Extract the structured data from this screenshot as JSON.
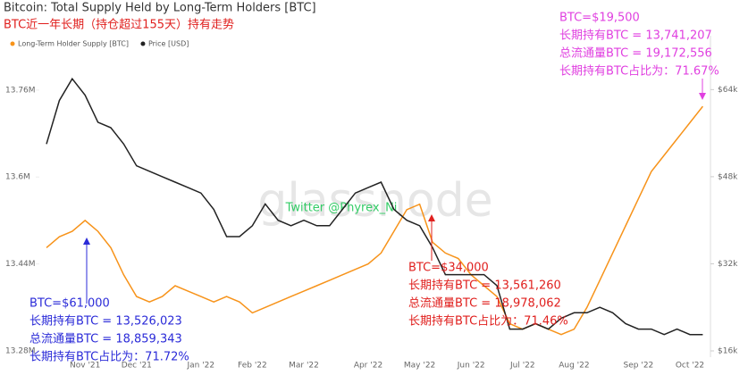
{
  "chart_data": {
    "type": "line",
    "title": "Bitcoin: Total Supply Held by Long-Term Holders [BTC]",
    "subtitle": "BTC近一年长期（持仓超过155天）持有走势",
    "categories": [
      null,
      null,
      null,
      "Nov '21",
      null,
      null,
      null,
      "Dec '21",
      null,
      null,
      null,
      null,
      "Jan '22",
      null,
      null,
      null,
      "Feb '22",
      null,
      null,
      null,
      "Mar '22",
      null,
      null,
      null,
      null,
      "Apr '22",
      null,
      null,
      null,
      "May '22",
      null,
      null,
      null,
      "Jun '22",
      null,
      null,
      null,
      "Jul '22",
      null,
      null,
      null,
      "Aug '22",
      null,
      null,
      null,
      null,
      "Sep '22",
      null,
      null,
      null,
      "Oct '22",
      null
    ],
    "series": [
      {
        "name": "Long-Term Holder Supply [BTC]",
        "color": "#f7931a",
        "axis": "y",
        "values": [
          13.47,
          13.49,
          13.5,
          13.52,
          13.5,
          13.47,
          13.42,
          13.38,
          13.37,
          13.38,
          13.4,
          13.39,
          13.38,
          13.37,
          13.38,
          13.37,
          13.35,
          13.36,
          13.37,
          13.38,
          13.39,
          13.4,
          13.41,
          13.42,
          13.43,
          13.44,
          13.46,
          13.5,
          13.54,
          13.55,
          13.48,
          13.46,
          13.45,
          13.42,
          13.4,
          13.38,
          13.33,
          13.32,
          13.33,
          13.32,
          13.31,
          13.32,
          13.36,
          13.41,
          13.46,
          13.51,
          13.56,
          13.61,
          13.64,
          13.67,
          13.7,
          13.73
        ]
      },
      {
        "name": "Price [USD]",
        "color": "#222222",
        "axis": "y2",
        "values": [
          54,
          62,
          66,
          63,
          58,
          57,
          54,
          50,
          49,
          48,
          47,
          46,
          45,
          42,
          37,
          37,
          39,
          43,
          40,
          39,
          40,
          39,
          39,
          42,
          45,
          46,
          47,
          42,
          40,
          39,
          35,
          30,
          30,
          30,
          30,
          28,
          20,
          20,
          21,
          20,
          22,
          23,
          23,
          24,
          23,
          21,
          20,
          20,
          19,
          20,
          19,
          19
        ]
      }
    ],
    "ylim": [
      13.28,
      13.86
    ],
    "yticks": [
      {
        "value": 13.28,
        "label": "13.28M"
      },
      {
        "value": 13.44,
        "label": "13.44M"
      },
      {
        "value": 13.6,
        "label": "13.6M"
      },
      {
        "value": 13.76,
        "label": "13.76M"
      }
    ],
    "y2lim": [
      16,
      73.9
    ],
    "y2ticks": [
      {
        "value": 16,
        "label": "$16k"
      },
      {
        "value": 32,
        "label": "$32k"
      },
      {
        "value": 48,
        "label": "$48k"
      },
      {
        "value": 64,
        "label": "$64k"
      }
    ],
    "watermark": "glassnode",
    "credit": "Twitter @Phyrex_Ni",
    "annotations": [
      {
        "color": "#2b2bd8",
        "lines": [
          "BTC=$61,000",
          "长期持有BTC = 13,526,023",
          "总流通量BTC = 18,859,343",
          "长期持有BTC占比为：71.72%"
        ]
      },
      {
        "color": "#e0201e",
        "lines": [
          "BTC=$34,000",
          "长期持有BTC = 13,561,260",
          "总流通量BTC = 18,978,062",
          "长期持有BTC占比为：71.46%"
        ]
      },
      {
        "color": "#e040e0",
        "lines": [
          "BTC=$19,500",
          "长期持有BTC = 13,741,207",
          "总流通量BTC = 19,172,556",
          "长期持有BTC占比为：71.67%"
        ]
      }
    ]
  }
}
